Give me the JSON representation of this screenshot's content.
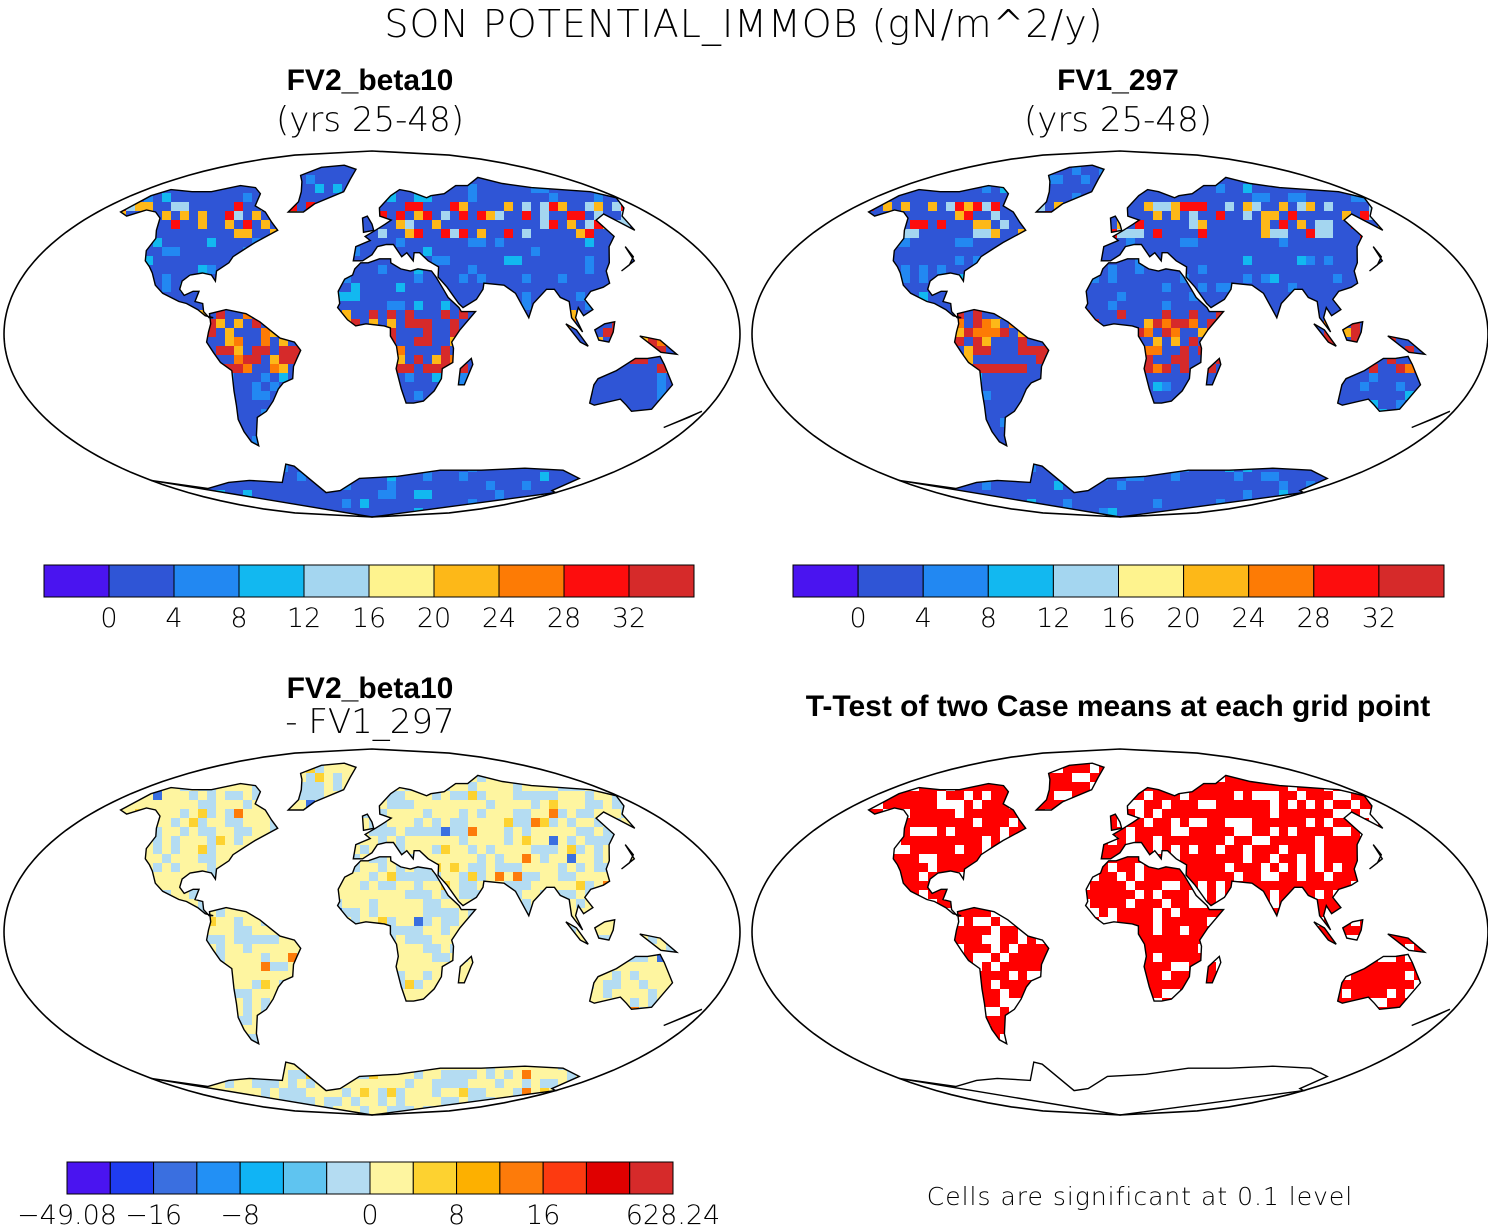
{
  "title": "SON POTENTIAL_IMMOB (gN/m^2/y)",
  "panels": [
    {
      "title": "FV2_beta10",
      "subtitle": "(yrs 25-48)"
    },
    {
      "title": "FV1_297",
      "subtitle": "(yrs 25-48)"
    },
    {
      "title": "FV2_beta10",
      "subtitle": "- FV1_297"
    },
    {
      "title": "T-Test of two Case means at each grid point",
      "subtitle": ""
    }
  ],
  "colorbars": {
    "mean": {
      "colors": [
        "#4a14f0",
        "#2f55d6",
        "#2288f2",
        "#12b8f0",
        "#a4d6f0",
        "#fef38e",
        "#fdb818",
        "#fd7b05",
        "#fd0d0d",
        "#d62a2a"
      ],
      "ticks": [
        "0",
        "4",
        "8",
        "12",
        "16",
        "20",
        "24",
        "28",
        "32"
      ]
    },
    "diff": {
      "colors": [
        "#4a14f0",
        "#1f3cf0",
        "#3a6fe0",
        "#2290f5",
        "#10b4f5",
        "#5fc4f0",
        "#b4dcf2",
        "#fef5a0",
        "#fdd230",
        "#fdb000",
        "#fd7b0a",
        "#fd3a10",
        "#e00000",
        "#d62a2a"
      ],
      "ticks": [
        "-49.08",
        "-16",
        "-8",
        "0",
        "8",
        "16",
        "628.24"
      ]
    }
  },
  "ttest": {
    "significant_color": "#ff0000",
    "note": "Cells are significant at 0.1 level"
  }
}
